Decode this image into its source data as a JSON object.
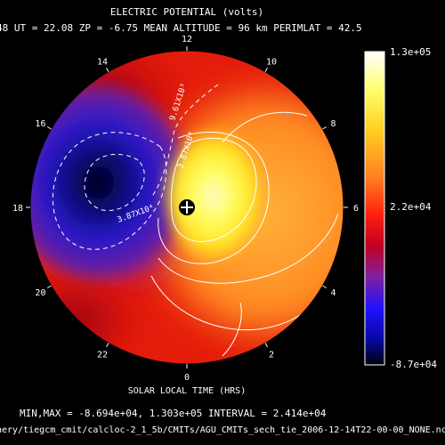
{
  "title": "ELECTRIC POTENTIAL (volts)",
  "header": "48  UT = 22.08  ZP =  -6.75  MEAN ALTITUDE =  96 km  PERIMLAT =  42.5",
  "x_axis_label": "SOLAR LOCAL TIME (HRS)",
  "stats_line": "MIN,MAX = -8.694e+04, 1.303e+05 INTERVAL =  2.414e+04",
  "file_path": "hery/tiegcm_cmit/calcloc-2_1_5b/CMITs/AGU_CMITs_sech_tie_2006-12-14T22-00-00_NONE.nc",
  "colorbar": {
    "max_label": "1.3e+05",
    "mid_label": "2.2e+04",
    "min_label": "-8.7e+04"
  },
  "colors": {
    "background": "#000000",
    "dashed_contour": "#ffffff",
    "solid_contour": "#ffffff"
  },
  "chart_data": {
    "type": "polar-contour",
    "variable": "ELECTRIC POTENTIAL (volts)",
    "min": -86940,
    "max": 130300,
    "interval": 24140,
    "local_time_ticks": [
      {
        "hour": 0,
        "label": "0"
      },
      {
        "hour": 2,
        "label": "2"
      },
      {
        "hour": 4,
        "label": "4"
      },
      {
        "hour": 6,
        "label": "6"
      },
      {
        "hour": 8,
        "label": "8"
      },
      {
        "hour": 10,
        "label": "10"
      },
      {
        "hour": 12,
        "label": "12"
      },
      {
        "hour": 14,
        "label": "14"
      },
      {
        "hour": 16,
        "label": "16"
      },
      {
        "hour": 18,
        "label": "18"
      },
      {
        "hour": 20,
        "label": "20"
      },
      {
        "hour": 22,
        "label": "22"
      }
    ],
    "contour_labels": [
      "9.61X10³",
      "3.87X10⁴",
      "3.87X10⁴"
    ],
    "colorbar_range": [
      -87000,
      130000
    ]
  }
}
